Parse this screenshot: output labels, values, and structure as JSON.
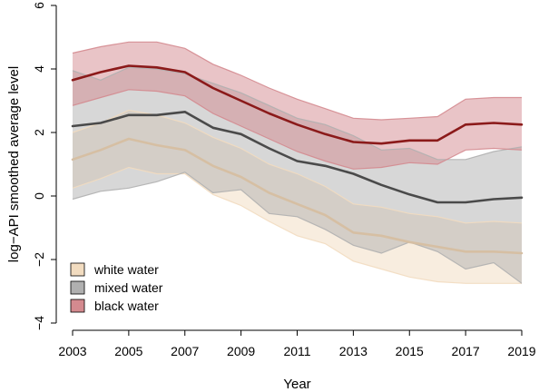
{
  "chart_data": {
    "type": "line",
    "xlabel": "Year",
    "ylabel": "log−API smoothed average level",
    "xlim": [
      2003,
      2019
    ],
    "ylim": [
      -4,
      6
    ],
    "x_ticks": [
      "2003",
      "2005",
      "2007",
      "2009",
      "2011",
      "2013",
      "2015",
      "2017",
      "2019"
    ],
    "y_ticks": [
      "−4",
      "−2",
      "0",
      "2",
      "4",
      "6"
    ],
    "grid": false,
    "legend_position": "bottom-left",
    "x": [
      2003,
      2004,
      2005,
      2006,
      2007,
      2008,
      2009,
      2010,
      2011,
      2012,
      2013,
      2014,
      2015,
      2016,
      2017,
      2018,
      2019
    ],
    "series": [
      {
        "name": "white water",
        "line_color": "#d6bfa3",
        "band_color": "#f2dcc0",
        "values": [
          1.15,
          1.45,
          1.8,
          1.6,
          1.45,
          0.95,
          0.6,
          0.1,
          -0.25,
          -0.6,
          -1.15,
          -1.25,
          -1.45,
          -1.6,
          -1.75,
          -1.75,
          -1.8
        ],
        "lower": [
          0.25,
          0.55,
          0.9,
          0.7,
          0.7,
          0.05,
          -0.3,
          -0.8,
          -1.25,
          -1.5,
          -2.05,
          -2.3,
          -2.55,
          -2.7,
          -2.75,
          -2.75,
          -2.75
        ],
        "upper": [
          2.0,
          2.3,
          2.7,
          2.55,
          2.3,
          1.85,
          1.5,
          1.0,
          0.7,
          0.3,
          -0.25,
          -0.35,
          -0.55,
          -0.65,
          -0.85,
          -0.8,
          -0.85
        ]
      },
      {
        "name": "mixed water",
        "line_color": "#4a4a4a",
        "band_color": "#b0b0b0",
        "values": [
          2.2,
          2.3,
          2.55,
          2.55,
          2.65,
          2.15,
          1.95,
          1.5,
          1.1,
          0.95,
          0.7,
          0.35,
          0.05,
          -0.2,
          -0.2,
          -0.1,
          -0.05
        ],
        "lower": [
          -0.1,
          0.15,
          0.25,
          0.45,
          0.75,
          0.1,
          0.2,
          -0.55,
          -0.65,
          -1.05,
          -1.55,
          -1.8,
          -1.45,
          -1.75,
          -2.3,
          -2.1,
          -2.75
        ],
        "upper": [
          3.95,
          3.65,
          4.05,
          4.0,
          3.85,
          3.55,
          3.25,
          2.85,
          2.45,
          2.25,
          1.9,
          1.45,
          1.5,
          1.15,
          1.15,
          1.4,
          1.55
        ]
      },
      {
        "name": "black water",
        "line_color": "#8b1a1a",
        "band_color": "#d48a8f",
        "values": [
          3.65,
          3.9,
          4.1,
          4.05,
          3.9,
          3.4,
          3.0,
          2.6,
          2.25,
          1.95,
          1.7,
          1.65,
          1.75,
          1.75,
          2.25,
          2.3,
          2.25
        ],
        "lower": [
          2.85,
          3.1,
          3.35,
          3.3,
          3.15,
          2.6,
          2.2,
          1.8,
          1.4,
          1.1,
          0.85,
          0.9,
          1.05,
          1.0,
          1.45,
          1.5,
          1.45
        ],
        "upper": [
          4.5,
          4.7,
          4.85,
          4.85,
          4.65,
          4.15,
          3.8,
          3.4,
          3.05,
          2.75,
          2.45,
          2.4,
          2.45,
          2.5,
          3.05,
          3.1,
          3.1
        ]
      }
    ]
  }
}
